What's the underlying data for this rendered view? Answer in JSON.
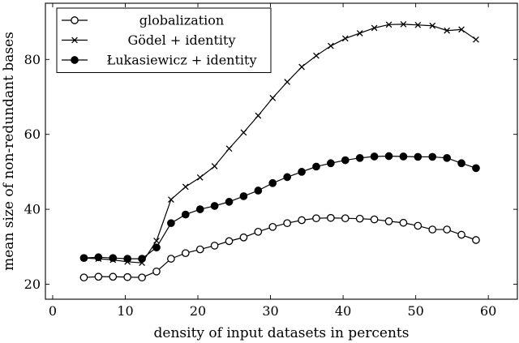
{
  "chart_data": {
    "type": "line",
    "xlabel": "density of input datasets in percents",
    "ylabel": "mean size of non-redundant bases",
    "xlim": [
      -1,
      64
    ],
    "ylim": [
      16,
      95
    ],
    "xticks": [
      0,
      10,
      20,
      30,
      40,
      50,
      60
    ],
    "yticks": [
      20,
      40,
      60,
      80
    ],
    "grid": false,
    "legend_position": "top-left",
    "x": [
      4.3,
      6.3,
      8.3,
      10.3,
      12.3,
      14.3,
      16.3,
      18.3,
      20.3,
      22.3,
      24.3,
      26.3,
      28.3,
      30.3,
      32.3,
      34.3,
      36.3,
      38.3,
      40.3,
      42.3,
      44.3,
      46.3,
      48.3,
      50.3,
      52.3,
      54.3,
      56.3,
      58.3
    ],
    "series": [
      {
        "name": "globalization",
        "marker": "open-circle",
        "values": [
          21.8,
          22.0,
          22.0,
          21.9,
          21.8,
          23.4,
          26.8,
          28.3,
          29.3,
          30.3,
          31.5,
          32.5,
          34.0,
          35.3,
          36.3,
          37.1,
          37.6,
          37.7,
          37.6,
          37.5,
          37.3,
          36.8,
          36.4,
          35.6,
          34.6,
          34.6,
          33.2,
          31.8
        ]
      },
      {
        "name": "Gödel + identity",
        "marker": "cross",
        "values": [
          27.0,
          26.8,
          26.5,
          26.0,
          25.7,
          31.6,
          42.6,
          46.0,
          48.5,
          51.5,
          56.2,
          60.5,
          65.0,
          69.7,
          74.0,
          78.0,
          81.0,
          83.6,
          85.6,
          87.0,
          88.4,
          89.3,
          89.4,
          89.2,
          89.0,
          87.7,
          88.0,
          85.3
        ]
      },
      {
        "name": "Łukasiewicz + identity",
        "marker": "filled-circle",
        "values": [
          27.0,
          27.2,
          27.0,
          26.8,
          26.8,
          29.8,
          36.3,
          38.6,
          40.0,
          40.9,
          42.0,
          43.5,
          45.0,
          47.0,
          48.6,
          50.0,
          51.4,
          52.3,
          53.1,
          53.7,
          54.1,
          54.2,
          54.1,
          54.0,
          54.0,
          53.7,
          52.3,
          51.0
        ]
      }
    ],
    "colors": {
      "line": "#000000",
      "background": "#ffffff"
    }
  }
}
